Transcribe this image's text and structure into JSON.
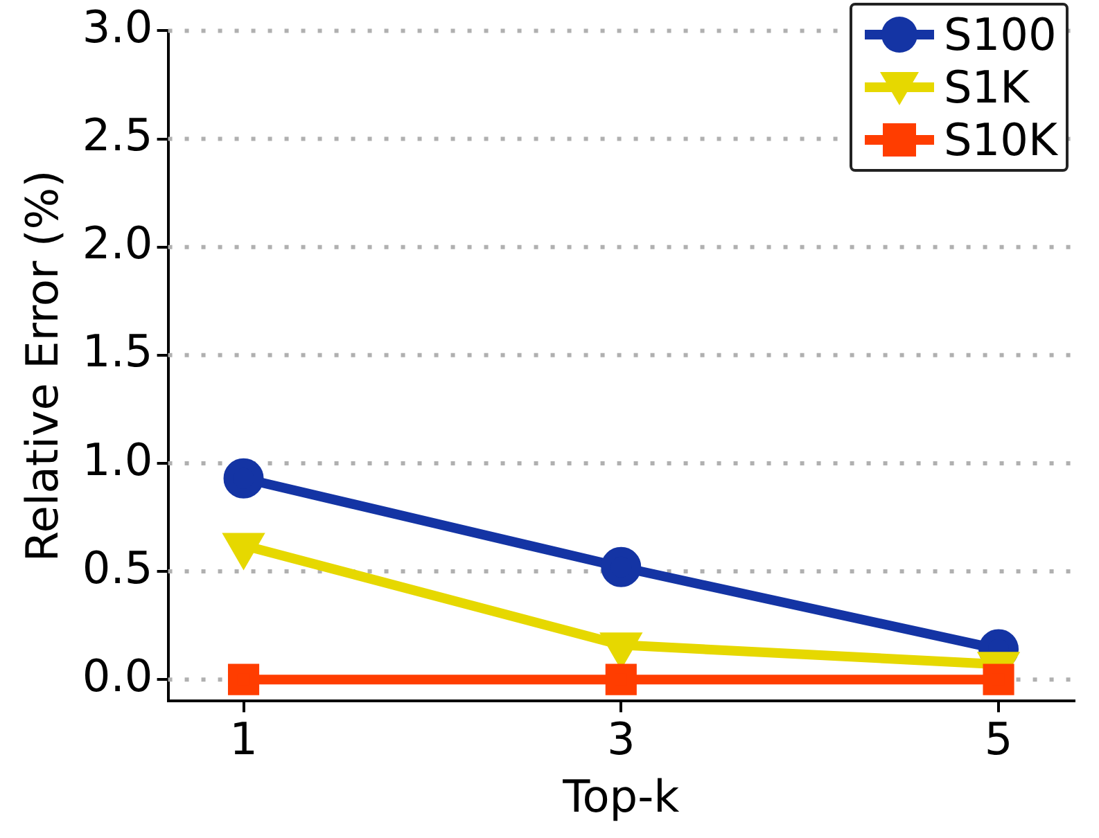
{
  "chart_data": {
    "type": "line",
    "xlabel": "Top-k",
    "ylabel": "Relative Error (%)",
    "x": [
      1,
      3,
      5
    ],
    "xlim": [
      0.6,
      5.4
    ],
    "xticks": [
      1,
      3,
      5
    ],
    "ylim": [
      -0.1,
      3.0
    ],
    "yticks": [
      {
        "value": 0,
        "label": "0.0"
      },
      {
        "value": 0.5,
        "label": "0.5"
      },
      {
        "value": 1,
        "label": "1.0"
      },
      {
        "value": 1.5,
        "label": "1.5"
      },
      {
        "value": 2,
        "label": "2.0"
      },
      {
        "value": 2.5,
        "label": "2.5"
      },
      {
        "value": 3,
        "label": "3.0"
      }
    ],
    "grid": "y",
    "legend": "top right",
    "series": [
      {
        "name": "S100",
        "color": "#1434a4",
        "marker": "circle",
        "values": [
          0.93,
          0.52,
          0.14
        ]
      },
      {
        "name": "S1K",
        "color": "#e6d800",
        "marker": "triangle",
        "values": [
          0.62,
          0.16,
          0.07
        ]
      },
      {
        "name": "S10K",
        "color": "#ff3d00",
        "marker": "square",
        "values": [
          0,
          0,
          0
        ]
      }
    ]
  }
}
